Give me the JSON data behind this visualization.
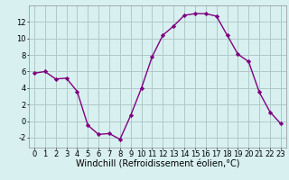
{
  "x": [
    0,
    1,
    2,
    3,
    4,
    5,
    6,
    7,
    8,
    9,
    10,
    11,
    12,
    13,
    14,
    15,
    16,
    17,
    18,
    19,
    20,
    21,
    22,
    23
  ],
  "y": [
    5.8,
    6.0,
    5.1,
    5.2,
    3.6,
    -0.5,
    -1.6,
    -1.5,
    -2.2,
    0.7,
    4.0,
    7.8,
    10.4,
    11.5,
    12.8,
    13.0,
    13.0,
    12.7,
    10.4,
    8.1,
    7.2,
    3.5,
    1.1,
    -0.3
  ],
  "line_color": "#800080",
  "marker": "D",
  "marker_size": 2.2,
  "bg_color": "#d8f0f0",
  "grid_color": "#b0c8c8",
  "xlabel": "Windchill (Refroidissement éolien,°C)",
  "xlabel_fontsize": 7,
  "ylim": [
    -3.2,
    14.0
  ],
  "xlim": [
    -0.5,
    23.5
  ],
  "yticks": [
    -2,
    0,
    2,
    4,
    6,
    8,
    10,
    12
  ],
  "xticks": [
    0,
    1,
    2,
    3,
    4,
    5,
    6,
    7,
    8,
    9,
    10,
    11,
    12,
    13,
    14,
    15,
    16,
    17,
    18,
    19,
    20,
    21,
    22,
    23
  ],
  "tick_fontsize": 6,
  "line_width": 1.0
}
